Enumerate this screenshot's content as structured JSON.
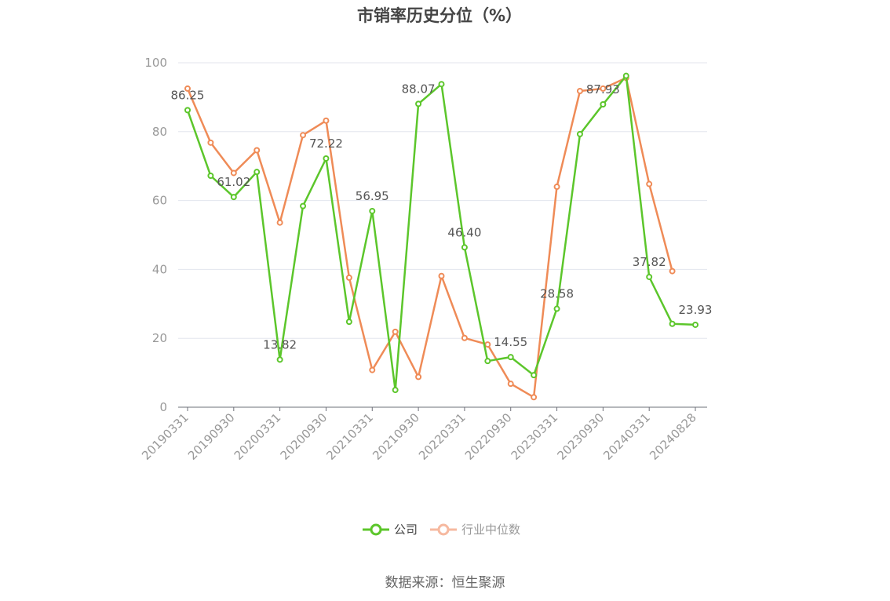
{
  "chart_data": {
    "type": "line",
    "title": "市销率历史分位（%）",
    "ylim": [
      0,
      100
    ],
    "yticks": [
      0,
      20,
      40,
      60,
      80,
      100
    ],
    "x": [
      "20190331",
      "20190630",
      "20190930",
      "20191231",
      "20200331",
      "20200630",
      "20200930",
      "20201231",
      "20210331",
      "20210630",
      "20210930",
      "20211231",
      "20220331",
      "20220630",
      "20220930",
      "20221231",
      "20230331",
      "20230630",
      "20230930",
      "20231231",
      "20240331",
      "20240630",
      "20240828"
    ],
    "xtick_labels": [
      "20190331",
      "20190930",
      "20200331",
      "20200930",
      "20210331",
      "20210930",
      "20220331",
      "20220930",
      "20230331",
      "20230930",
      "20240331",
      "20240828"
    ],
    "grid": true,
    "legend_position": "bottom",
    "series": [
      {
        "name": "公司",
        "color": "#5cc62b",
        "values": [
          86.25,
          67.2,
          61.02,
          68.3,
          13.82,
          58.4,
          72.22,
          24.8,
          56.95,
          5.0,
          88.07,
          93.8,
          46.4,
          13.4,
          14.55,
          9.3,
          28.58,
          79.3,
          87.93,
          96.2,
          37.82,
          24.2,
          23.93
        ],
        "labels": [
          "86.25",
          null,
          "61.02",
          null,
          "13.82",
          null,
          "72.22",
          null,
          "56.95",
          null,
          "88.07",
          null,
          "46.40",
          null,
          "14.55",
          null,
          "28.58",
          null,
          "87.93",
          null,
          "37.82",
          null,
          "23.93"
        ]
      },
      {
        "name": "行业中位数",
        "color": "#ef8b57",
        "values": [
          92.5,
          76.8,
          68.0,
          74.6,
          53.6,
          79.0,
          83.2,
          37.6,
          10.8,
          21.9,
          8.8,
          38.1,
          20.1,
          18.2,
          6.8,
          2.9,
          64.0,
          91.8,
          92.5,
          95.6,
          64.8,
          39.5,
          null
        ]
      }
    ]
  },
  "source_text": "数据来源：恒生聚源"
}
